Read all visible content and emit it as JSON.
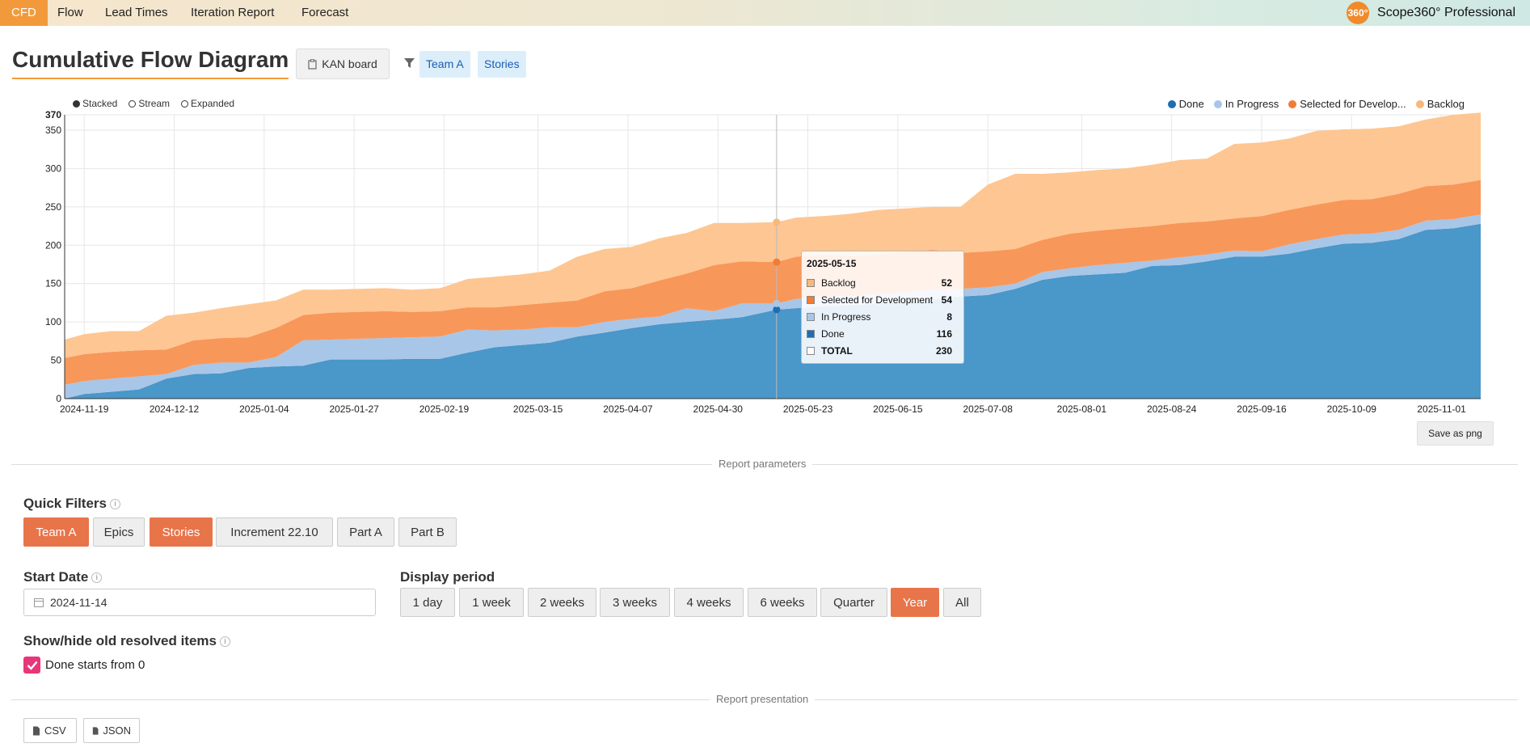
{
  "nav": {
    "items": [
      {
        "label": "CFD",
        "active": true
      },
      {
        "label": "Flow",
        "active": false
      },
      {
        "label": "Lead Times",
        "active": false
      },
      {
        "label": "Iteration Report",
        "active": false
      },
      {
        "label": "Forecast",
        "active": false
      }
    ],
    "brand_logo_text": "360°",
    "brand": "Scope360° Professional"
  },
  "header": {
    "title": "Cumulative Flow Diagram",
    "board_button": "KAN board",
    "chips": [
      "Team A",
      "Stories"
    ]
  },
  "chart_controls": {
    "modes": [
      {
        "label": "Stacked",
        "selected": true
      },
      {
        "label": "Stream",
        "selected": false
      },
      {
        "label": "Expanded",
        "selected": false
      }
    ]
  },
  "colors": {
    "done": "#4a97c9",
    "in_progress": "#a8c6e8",
    "selected": "#f8975a",
    "backlog": "#fec692",
    "accent": "#e8744a",
    "nav_active": "#f29a3b"
  },
  "chart_data": {
    "type": "area",
    "stacked": true,
    "legend": [
      "Done",
      "In Progress",
      "Selected for Develop...",
      "Backlog"
    ],
    "legend_placement": "top-right",
    "x": [
      "2024-11-14",
      "2024-11-19",
      "2024-11-26",
      "2024-12-03",
      "2024-12-10",
      "2024-12-17",
      "2024-12-24",
      "2024-12-31",
      "2025-01-07",
      "2025-01-14",
      "2025-01-21",
      "2025-01-28",
      "2025-02-04",
      "2025-02-11",
      "2025-02-18",
      "2025-02-25",
      "2025-03-04",
      "2025-03-11",
      "2025-03-18",
      "2025-03-25",
      "2025-04-01",
      "2025-04-08",
      "2025-04-15",
      "2025-04-22",
      "2025-04-29",
      "2025-05-06",
      "2025-05-15",
      "2025-05-20",
      "2025-05-27",
      "2025-06-03",
      "2025-06-10",
      "2025-06-17",
      "2025-06-24",
      "2025-07-01",
      "2025-07-08",
      "2025-07-15",
      "2025-07-22",
      "2025-07-29",
      "2025-08-05",
      "2025-08-12",
      "2025-08-19",
      "2025-08-26",
      "2025-09-02",
      "2025-09-09",
      "2025-09-16",
      "2025-09-23",
      "2025-09-30",
      "2025-10-07",
      "2025-10-14",
      "2025-10-21",
      "2025-10-28",
      "2025-11-04",
      "2025-11-11"
    ],
    "series": [
      {
        "name": "Done",
        "values": [
          0,
          6,
          9,
          12,
          26,
          32,
          33,
          40,
          42,
          43,
          51,
          51,
          51,
          52,
          52,
          60,
          67,
          70,
          73,
          81,
          86,
          92,
          97,
          100,
          103,
          106,
          116,
          118,
          120,
          122,
          124,
          127,
          130,
          133,
          135,
          143,
          155,
          160,
          162,
          164,
          173,
          174,
          179,
          185,
          185,
          189,
          196,
          202,
          203,
          208,
          220,
          222,
          228
        ]
      },
      {
        "name": "In Progress",
        "values": [
          18,
          17,
          17,
          17,
          6,
          12,
          14,
          7,
          12,
          33,
          26,
          27,
          28,
          28,
          29,
          30,
          22,
          20,
          20,
          12,
          14,
          12,
          10,
          18,
          11,
          18,
          8,
          12,
          13,
          12,
          12,
          12,
          12,
          10,
          10,
          7,
          10,
          10,
          12,
          13,
          7,
          10,
          9,
          8,
          7,
          12,
          12,
          12,
          12,
          12,
          12,
          12,
          12
        ]
      },
      {
        "name": "Selected for Development",
        "values": [
          35,
          35,
          35,
          34,
          32,
          32,
          32,
          33,
          38,
          33,
          35,
          35,
          35,
          33,
          33,
          29,
          30,
          32,
          32,
          35,
          40,
          40,
          47,
          45,
          60,
          55,
          54,
          55,
          55,
          52,
          52,
          52,
          52,
          47,
          47,
          45,
          42,
          45,
          45,
          45,
          45,
          45,
          43,
          42,
          46,
          45,
          45,
          45,
          45,
          47,
          45,
          45,
          45
        ]
      },
      {
        "name": "Backlog",
        "values": [
          24,
          26,
          27,
          25,
          44,
          36,
          39,
          43,
          36,
          33,
          30,
          30,
          30,
          29,
          30,
          37,
          40,
          40,
          42,
          57,
          55,
          54,
          55,
          53,
          55,
          50,
          52,
          51,
          50,
          55,
          58,
          57,
          56,
          60,
          87,
          98,
          86,
          80,
          79,
          78,
          80,
          82,
          82,
          97,
          96,
          93,
          96,
          92,
          92,
          88,
          87,
          91,
          88
        ]
      }
    ],
    "x_ticks": [
      "2024-11-19",
      "2024-12-12",
      "2025-01-04",
      "2025-01-27",
      "2025-02-19",
      "2025-03-15",
      "2025-04-07",
      "2025-04-30",
      "2025-05-23",
      "2025-06-15",
      "2025-07-08",
      "2025-08-01",
      "2025-08-24",
      "2025-09-16",
      "2025-10-09",
      "2025-11-01"
    ],
    "y_ticks": [
      0,
      50,
      100,
      150,
      200,
      250,
      300,
      350,
      370
    ],
    "ylim": [
      0,
      370
    ],
    "grid": true,
    "hover_date": "2025-05-15"
  },
  "tooltip": {
    "date": "2025-05-15",
    "rows": [
      {
        "label": "Backlog",
        "value": "52",
        "color": "#f9b77a",
        "bold": false
      },
      {
        "label": "Selected for Development",
        "value": "54",
        "color": "#f27b35",
        "bold": false
      },
      {
        "label": "In Progress",
        "value": "8",
        "color": "#a8c6e8",
        "bold": false
      },
      {
        "label": "Done",
        "value": "116",
        "color": "#1f6db4",
        "bold": false
      },
      {
        "label": "TOTAL",
        "value": "230",
        "color": "#ffffff",
        "bold": true
      }
    ]
  },
  "save_button": "Save as png",
  "report_parameters_label": "Report parameters",
  "quick_filters": {
    "title": "Quick Filters",
    "items": [
      {
        "label": "Team A",
        "active": true
      },
      {
        "label": "Epics",
        "active": false
      },
      {
        "label": "Stories",
        "active": true
      },
      {
        "label": "Increment 22.10",
        "active": false
      },
      {
        "label": "Part A",
        "active": false
      },
      {
        "label": "Part B",
        "active": false
      }
    ]
  },
  "start_date": {
    "title": "Start Date",
    "value": "2024-11-14"
  },
  "display_period": {
    "title": "Display period",
    "options": [
      {
        "label": "1 day",
        "active": false
      },
      {
        "label": "1 week",
        "active": false
      },
      {
        "label": "2 weeks",
        "active": false
      },
      {
        "label": "3 weeks",
        "active": false
      },
      {
        "label": "4 weeks",
        "active": false
      },
      {
        "label": "6 weeks",
        "active": false
      },
      {
        "label": "Quarter",
        "active": false
      },
      {
        "label": "Year",
        "active": true
      },
      {
        "label": "All",
        "active": false
      }
    ]
  },
  "old_resolved": {
    "title": "Show/hide old resolved items",
    "checkbox_label": "Done starts from 0",
    "checked": true
  },
  "report_presentation_label": "Report presentation",
  "export": {
    "csv": "CSV",
    "json": "JSON"
  }
}
